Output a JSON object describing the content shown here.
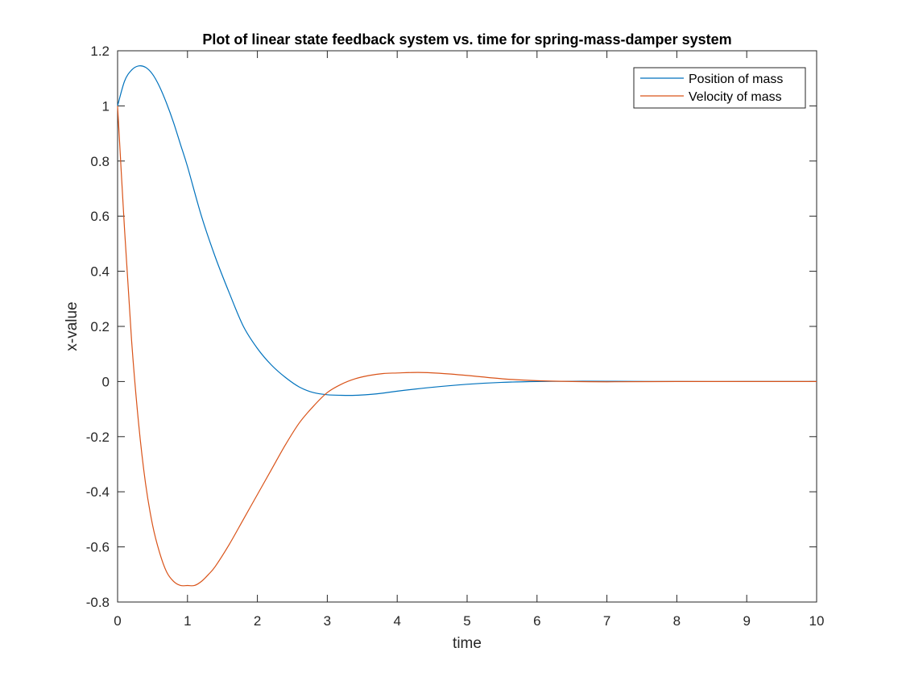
{
  "chart_data": {
    "type": "line",
    "title": "Plot of linear state feedback system vs. time for spring-mass-damper system",
    "xlabel": "time",
    "ylabel": "x-value",
    "xlim": [
      0,
      10
    ],
    "ylim": [
      -0.8,
      1.2
    ],
    "xticks": [
      "0",
      "1",
      "2",
      "3",
      "4",
      "5",
      "6",
      "7",
      "8",
      "9",
      "10"
    ],
    "yticks": [
      "-0.8",
      "-0.6",
      "-0.4",
      "-0.2",
      "0",
      "0.2",
      "0.4",
      "0.6",
      "0.8",
      "1",
      "1.2"
    ],
    "grid": false,
    "legend_position": "top-right",
    "series": [
      {
        "name": "Position of mass",
        "color": "#0072BD",
        "x": [
          0,
          0.1,
          0.2,
          0.3,
          0.4,
          0.5,
          0.6,
          0.7,
          0.8,
          0.9,
          1.0,
          1.2,
          1.4,
          1.6,
          1.8,
          2.0,
          2.2,
          2.4,
          2.6,
          2.8,
          3.0,
          3.2,
          3.4,
          3.6,
          3.8,
          4.0,
          4.5,
          5.0,
          5.5,
          6.0,
          6.5,
          7.0,
          8.0,
          9.0,
          10.0
        ],
        "y": [
          1.0,
          1.09,
          1.13,
          1.145,
          1.14,
          1.115,
          1.07,
          1.01,
          0.94,
          0.86,
          0.78,
          0.6,
          0.45,
          0.32,
          0.2,
          0.12,
          0.06,
          0.015,
          -0.02,
          -0.04,
          -0.048,
          -0.05,
          -0.05,
          -0.047,
          -0.042,
          -0.035,
          -0.021,
          -0.01,
          -0.003,
          0.0,
          0.001,
          0.001,
          0.0,
          0.0,
          0.0
        ]
      },
      {
        "name": "Velocity of mass",
        "color": "#D95319",
        "x": [
          0,
          0.1,
          0.2,
          0.3,
          0.4,
          0.5,
          0.6,
          0.7,
          0.8,
          0.9,
          1.0,
          1.1,
          1.2,
          1.3,
          1.4,
          1.6,
          1.8,
          2.0,
          2.2,
          2.4,
          2.6,
          2.8,
          3.0,
          3.2,
          3.4,
          3.6,
          3.8,
          4.0,
          4.3,
          4.6,
          5.0,
          5.5,
          6.0,
          6.5,
          7.0,
          8.0,
          9.0,
          10.0
        ],
        "y": [
          1.0,
          0.55,
          0.15,
          -0.15,
          -0.37,
          -0.52,
          -0.62,
          -0.69,
          -0.725,
          -0.74,
          -0.74,
          -0.74,
          -0.725,
          -0.7,
          -0.67,
          -0.59,
          -0.5,
          -0.41,
          -0.32,
          -0.23,
          -0.15,
          -0.09,
          -0.04,
          -0.01,
          0.01,
          0.022,
          0.029,
          0.031,
          0.033,
          0.03,
          0.022,
          0.01,
          0.003,
          0.0,
          -0.001,
          0.0,
          0.0,
          0.0
        ]
      }
    ]
  }
}
